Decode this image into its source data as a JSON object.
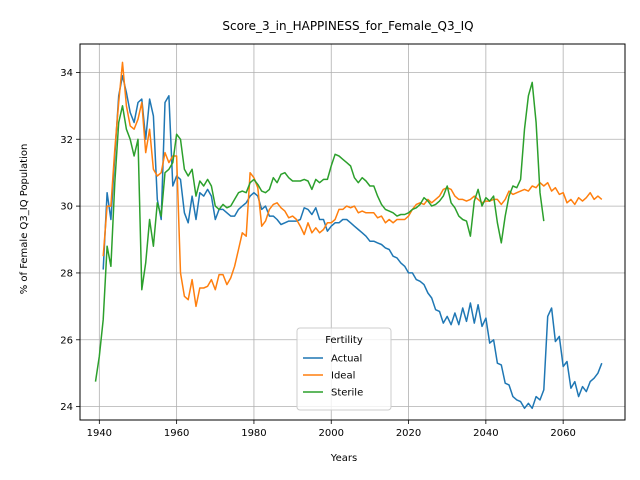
{
  "chart_data": {
    "type": "line",
    "title": "Score_3_in_HAPPINESS_for_Female_Q3_IQ",
    "xlabel": "Years",
    "ylabel": "% of Female Q3_IQ Population",
    "xlim": [
      1935,
      2076
    ],
    "ylim": [
      23.6,
      34.85
    ],
    "xticks": [
      1940,
      1960,
      1980,
      2000,
      2020,
      2040,
      2060
    ],
    "yticks": [
      24,
      26,
      28,
      30,
      32,
      34
    ],
    "grid": true,
    "legend": {
      "title": "Fertility",
      "placement": "lower-center"
    },
    "colors": {
      "Actual": "#1f77b4",
      "Ideal": "#ff7f0e",
      "Sterile": "#2ca02c"
    },
    "series": [
      {
        "name": "Actual",
        "x": [
          1941,
          1942,
          1943,
          1944,
          1945,
          1946,
          1947,
          1948,
          1949,
          1950,
          1951,
          1952,
          1953,
          1954,
          1955,
          1956,
          1957,
          1958,
          1959,
          1960,
          1961,
          1962,
          1963,
          1964,
          1965,
          1966,
          1967,
          1968,
          1969,
          1970,
          1971,
          1972,
          1973,
          1974,
          1975,
          1976,
          1977,
          1978,
          1979,
          1980,
          1981,
          1982,
          1983,
          1984,
          1985,
          1986,
          1987,
          1988,
          1989,
          1990,
          1991,
          1992,
          1993,
          1994,
          1995,
          1996,
          1997,
          1998,
          1999,
          2000,
          2001,
          2002,
          2003,
          2004,
          2005,
          2006,
          2007,
          2008,
          2009,
          2010,
          2011,
          2012,
          2013,
          2014,
          2015,
          2016,
          2017,
          2018,
          2019,
          2020,
          2021,
          2022,
          2023,
          2024,
          2025,
          2026,
          2027,
          2028,
          2029,
          2030,
          2031,
          2032,
          2033,
          2034,
          2035,
          2036,
          2037,
          2038,
          2039,
          2040,
          2041,
          2042,
          2043,
          2044,
          2045,
          2046,
          2047,
          2048,
          2049,
          2050,
          2051,
          2052,
          2053,
          2054,
          2055,
          2056,
          2057,
          2058,
          2059,
          2060,
          2061,
          2062,
          2063,
          2064,
          2065,
          2066,
          2067,
          2068,
          2069,
          2070
        ],
        "values": [
          28.1,
          30.4,
          29.6,
          31.5,
          33.3,
          33.9,
          33.4,
          32.8,
          32.5,
          33.1,
          33.2,
          32.0,
          33.2,
          32.7,
          30.2,
          29.6,
          33.1,
          33.3,
          30.6,
          30.9,
          30.8,
          29.8,
          29.5,
          30.3,
          29.6,
          30.4,
          30.3,
          30.5,
          30.3,
          29.6,
          29.9,
          29.9,
          29.8,
          29.7,
          29.7,
          29.9,
          30.0,
          30.1,
          30.3,
          30.4,
          30.3,
          29.9,
          30.0,
          29.7,
          29.7,
          29.6,
          29.45,
          29.5,
          29.55,
          29.55,
          29.55,
          29.6,
          29.95,
          29.9,
          29.75,
          29.95,
          29.6,
          29.6,
          29.25,
          29.4,
          29.5,
          29.5,
          29.6,
          29.6,
          29.5,
          29.4,
          29.3,
          29.2,
          29.1,
          28.95,
          28.95,
          28.9,
          28.85,
          28.75,
          28.7,
          28.5,
          28.45,
          28.3,
          28.2,
          28.0,
          28.0,
          27.8,
          27.75,
          27.65,
          27.4,
          27.25,
          26.9,
          26.85,
          26.5,
          26.7,
          26.45,
          26.8,
          26.45,
          26.95,
          26.55,
          27.1,
          26.5,
          27.05,
          26.4,
          26.65,
          25.9,
          26.0,
          25.3,
          25.25,
          24.7,
          24.65,
          24.3,
          24.2,
          24.15,
          23.95,
          24.1,
          23.95,
          24.3,
          24.2,
          24.5,
          26.7,
          26.95,
          25.95,
          26.1,
          25.2,
          25.35,
          24.55,
          24.75,
          24.3,
          24.6,
          24.45,
          24.75,
          24.85,
          25.0,
          25.3
        ]
      },
      {
        "name": "Ideal",
        "x": [
          1941,
          1942,
          1943,
          1944,
          1945,
          1946,
          1947,
          1948,
          1949,
          1950,
          1951,
          1952,
          1953,
          1954,
          1955,
          1956,
          1957,
          1958,
          1959,
          1960,
          1961,
          1962,
          1963,
          1964,
          1965,
          1966,
          1967,
          1968,
          1969,
          1970,
          1971,
          1972,
          1973,
          1974,
          1975,
          1976,
          1977,
          1978,
          1979,
          1980,
          1981,
          1982,
          1983,
          1984,
          1985,
          1986,
          1987,
          1988,
          1989,
          1990,
          1991,
          1992,
          1993,
          1994,
          1995,
          1996,
          1997,
          1998,
          1999,
          2000,
          2001,
          2002,
          2003,
          2004,
          2005,
          2006,
          2007,
          2008,
          2009,
          2010,
          2011,
          2012,
          2013,
          2014,
          2015,
          2016,
          2017,
          2018,
          2019,
          2020,
          2021,
          2022,
          2023,
          2024,
          2025,
          2026,
          2027,
          2028,
          2029,
          2030,
          2031,
          2032,
          2033,
          2034,
          2035,
          2036,
          2037,
          2038,
          2039,
          2040,
          2041,
          2042,
          2043,
          2044,
          2045,
          2046,
          2047,
          2048,
          2049,
          2050,
          2051,
          2052,
          2053,
          2054,
          2055,
          2056,
          2057,
          2058,
          2059,
          2060,
          2061,
          2062,
          2063,
          2064,
          2065,
          2066,
          2067,
          2068,
          2069,
          2070
        ],
        "values": [
          28.5,
          30.0,
          30.0,
          31.7,
          33.1,
          34.3,
          33.0,
          32.4,
          32.3,
          32.6,
          33.1,
          31.6,
          32.3,
          31.1,
          30.9,
          31.0,
          31.6,
          31.3,
          31.5,
          31.5,
          28.0,
          27.3,
          27.2,
          27.8,
          27.0,
          27.55,
          27.55,
          27.6,
          27.8,
          27.5,
          27.95,
          27.95,
          27.65,
          27.85,
          28.2,
          28.7,
          29.2,
          29.1,
          31.0,
          30.85,
          30.55,
          29.4,
          29.55,
          29.9,
          30.05,
          30.1,
          29.95,
          29.85,
          29.65,
          29.7,
          29.6,
          29.4,
          29.15,
          29.5,
          29.2,
          29.35,
          29.2,
          29.3,
          29.5,
          29.5,
          29.6,
          29.9,
          29.9,
          30.0,
          29.95,
          30.0,
          29.8,
          29.85,
          29.8,
          29.8,
          29.8,
          29.65,
          29.7,
          29.5,
          29.6,
          29.5,
          29.6,
          29.6,
          29.6,
          29.7,
          29.9,
          30.05,
          30.1,
          30.05,
          30.2,
          30.1,
          30.2,
          30.3,
          30.5,
          30.55,
          30.5,
          30.3,
          30.2,
          30.2,
          30.15,
          30.2,
          30.3,
          30.2,
          30.1,
          30.15,
          30.15,
          30.2,
          30.2,
          30.05,
          30.2,
          30.45,
          30.35,
          30.4,
          30.45,
          30.5,
          30.45,
          30.6,
          30.55,
          30.7,
          30.6,
          30.7,
          30.45,
          30.55,
          30.35,
          30.4,
          30.1,
          30.2,
          30.05,
          30.25,
          30.15,
          30.25,
          30.4,
          30.2,
          30.3,
          30.2
        ]
      },
      {
        "name": "Sterile",
        "x": [
          1939,
          1940,
          1941,
          1942,
          1943,
          1944,
          1945,
          1946,
          1947,
          1948,
          1949,
          1950,
          1951,
          1952,
          1953,
          1954,
          1955,
          1956,
          1957,
          1958,
          1959,
          1960,
          1961,
          1962,
          1963,
          1964,
          1965,
          1966,
          1967,
          1968,
          1969,
          1970,
          1971,
          1972,
          1973,
          1974,
          1975,
          1976,
          1977,
          1978,
          1979,
          1980,
          1981,
          1982,
          1983,
          1984,
          1985,
          1986,
          1987,
          1988,
          1989,
          1990,
          1991,
          1992,
          1993,
          1994,
          1995,
          1996,
          1997,
          1998,
          1999,
          2000,
          2001,
          2002,
          2003,
          2004,
          2005,
          2006,
          2007,
          2008,
          2009,
          2010,
          2011,
          2012,
          2013,
          2014,
          2015,
          2016,
          2017,
          2018,
          2019,
          2020,
          2021,
          2022,
          2023,
          2024,
          2025,
          2026,
          2027,
          2028,
          2029,
          2030,
          2031,
          2032,
          2033,
          2034,
          2035,
          2036,
          2037,
          2038,
          2039,
          2040,
          2041,
          2042,
          2043,
          2044,
          2045,
          2046,
          2047,
          2048,
          2049,
          2050,
          2051,
          2052,
          2053,
          2054,
          2055
        ],
        "values": [
          24.75,
          25.5,
          26.6,
          28.8,
          28.2,
          30.7,
          32.5,
          33.0,
          32.3,
          32.0,
          31.5,
          32.0,
          27.5,
          28.3,
          29.6,
          28.8,
          30.1,
          29.7,
          31.0,
          31.1,
          31.3,
          32.15,
          32.0,
          31.1,
          30.9,
          31.1,
          30.3,
          30.75,
          30.6,
          30.8,
          30.6,
          30.0,
          29.9,
          30.05,
          29.95,
          30.0,
          30.2,
          30.4,
          30.45,
          30.4,
          30.7,
          30.8,
          30.65,
          30.45,
          30.4,
          30.5,
          30.85,
          30.7,
          30.95,
          31.0,
          30.85,
          30.75,
          30.75,
          30.75,
          30.8,
          30.75,
          30.5,
          30.8,
          30.7,
          30.8,
          30.8,
          31.2,
          31.55,
          31.5,
          31.4,
          31.3,
          31.2,
          30.85,
          30.7,
          30.85,
          30.75,
          30.6,
          30.6,
          30.3,
          30.05,
          29.9,
          29.85,
          29.8,
          29.7,
          29.75,
          29.75,
          29.8,
          29.9,
          29.95,
          30.05,
          30.25,
          30.15,
          30.0,
          30.05,
          30.15,
          30.3,
          30.6,
          30.1,
          29.95,
          29.7,
          29.6,
          29.55,
          29.1,
          30.15,
          30.5,
          30.0,
          30.25,
          30.15,
          30.3,
          29.5,
          28.9,
          29.7,
          30.3,
          30.6,
          30.55,
          30.8,
          32.3,
          33.3,
          33.7,
          32.5,
          30.4,
          29.55
        ]
      }
    ]
  }
}
